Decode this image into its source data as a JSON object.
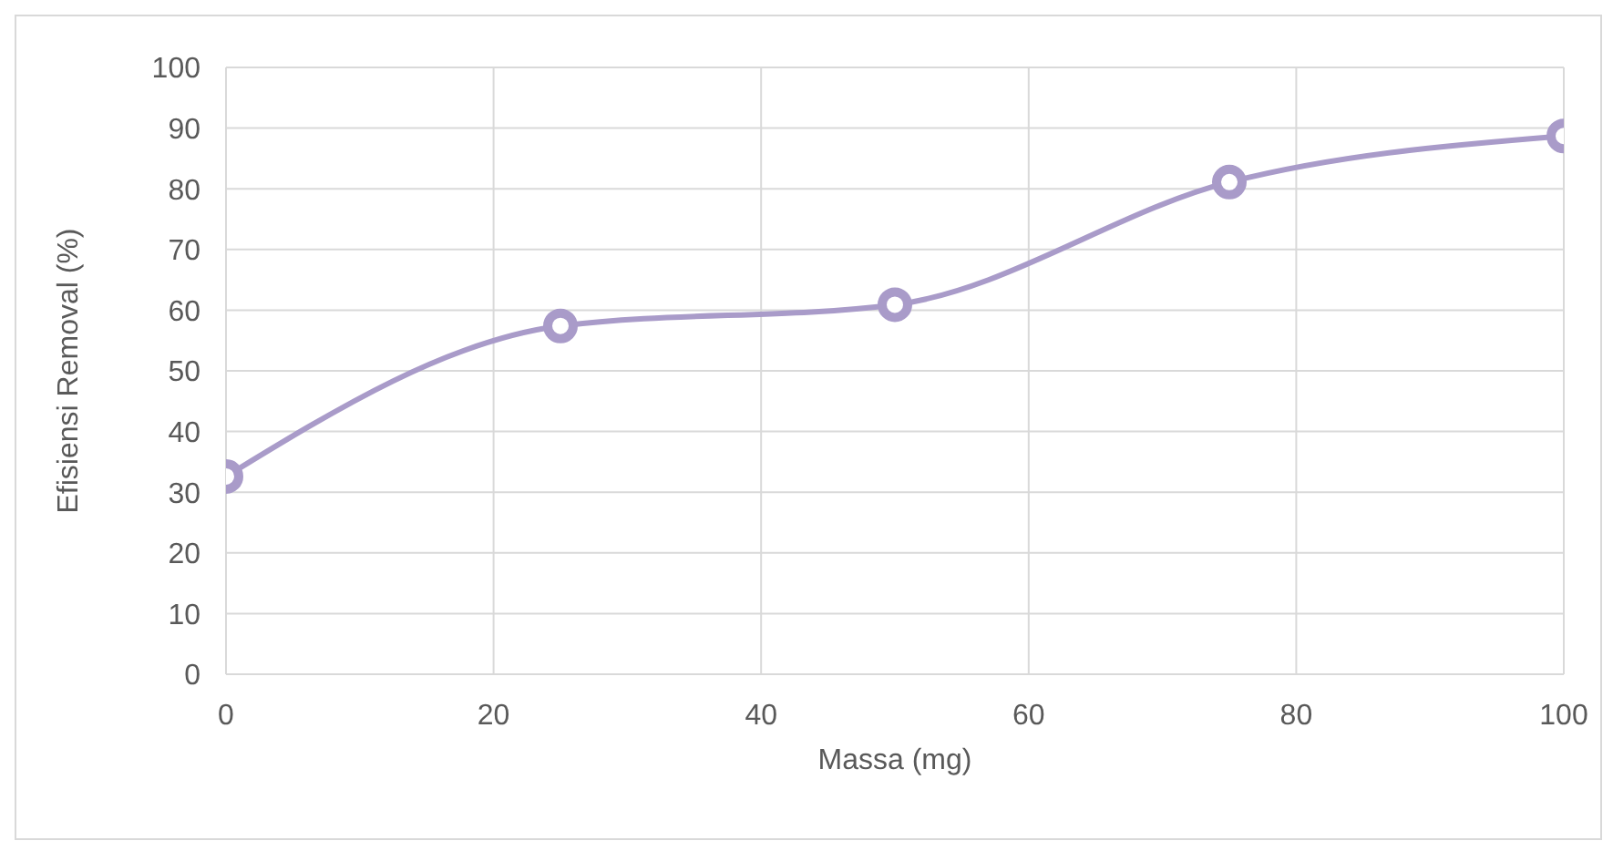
{
  "chart_data": {
    "type": "line",
    "xlabel": "Massa (mg)",
    "ylabel": "Efisiensi Removal (%)",
    "x": [
      0,
      25,
      50,
      75,
      100
    ],
    "series": [
      {
        "color": "#a99bc9",
        "values": [
          32.6,
          57.4,
          60.9,
          81.1,
          88.7
        ]
      }
    ],
    "xlim": [
      0,
      100
    ],
    "xticks": [
      0,
      20,
      40,
      60,
      80,
      100
    ],
    "ylim": [
      0,
      100
    ],
    "yticks": [
      0,
      10,
      20,
      30,
      40,
      50,
      60,
      70,
      80,
      90,
      100
    ],
    "grid": true,
    "marker": "circle",
    "line_style": "solid"
  }
}
